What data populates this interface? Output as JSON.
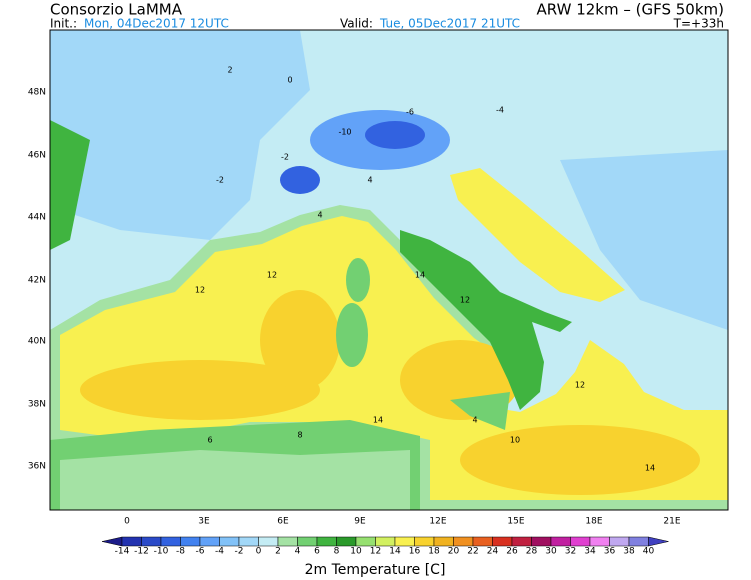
{
  "header": {
    "title": "Consorzio LaMMA",
    "model": "ARW 12km – (GFS 50km)",
    "init_label": "Init.:",
    "init": "Mon, 04Dec2017 12UTC",
    "valid_label": "Valid:",
    "valid": "Tue, 05Dec2017 21UTC",
    "lead": "T=+33h"
  },
  "map": {
    "lat_labels": [
      "48N",
      "46N",
      "44N",
      "42N",
      "40N",
      "38N",
      "36N"
    ],
    "lon_labels": [
      "0",
      "3E",
      "6E",
      "9E",
      "12E",
      "15E",
      "18E",
      "21E"
    ],
    "contour_labels": [
      -10,
      -6,
      -2,
      -2,
      0,
      2,
      4,
      4,
      8,
      12,
      12,
      14,
      14,
      12,
      10,
      14,
      -4,
      4,
      6,
      12
    ]
  },
  "colorbar": {
    "levels": [
      -14,
      -12,
      -10,
      -8,
      -6,
      -4,
      -2,
      0,
      2,
      4,
      6,
      8,
      10,
      12,
      14,
      16,
      18,
      20,
      22,
      24,
      26,
      28,
      30,
      32,
      34,
      36,
      38,
      40
    ],
    "colors": [
      "#1c1c8a",
      "#2232b0",
      "#2a4ac8",
      "#3262e0",
      "#4282f0",
      "#62a2f8",
      "#82c2f8",
      "#a2d8f8",
      "#c4ecf4",
      "#a4e2a4",
      "#72d072",
      "#40b440",
      "#2a9a2a",
      "#96e070",
      "#d2f060",
      "#f8f050",
      "#f8d22e",
      "#f0b220",
      "#f09020",
      "#e86020",
      "#d83020",
      "#c02040",
      "#a01060",
      "#c020a0",
      "#e040d0",
      "#f080f0",
      "#c0a8f0",
      "#8080e0",
      "#4040c0"
    ],
    "label": "2m Temperature [C]"
  }
}
